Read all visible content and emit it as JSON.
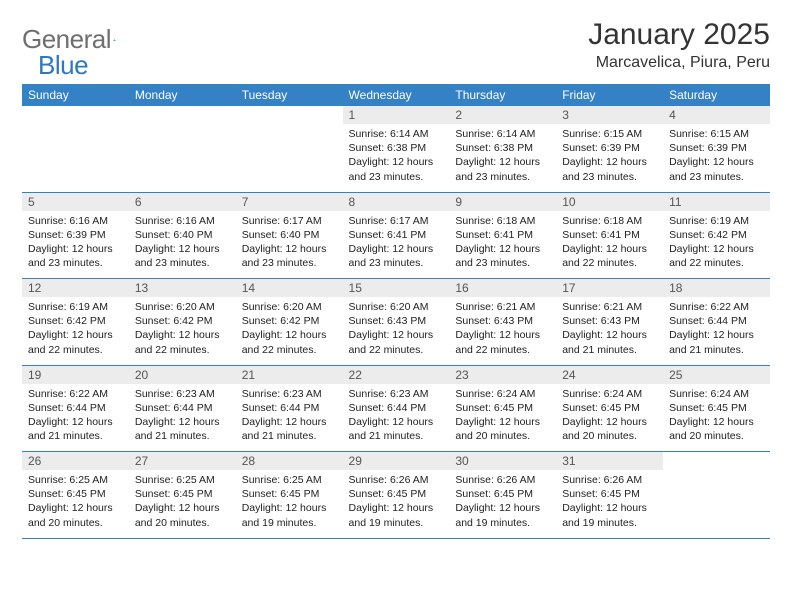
{
  "logo": {
    "general": "General",
    "blue": "Blue"
  },
  "title": "January 2025",
  "location": "Marcavelica, Piura, Peru",
  "colors": {
    "header_bg": "#3481c5",
    "header_text": "#ffffff",
    "daynum_bg": "#ececec",
    "daynum_text": "#555555",
    "body_text": "#222222",
    "rule": "#3481c5",
    "logo_gray": "#6f6f6f",
    "logo_blue": "#2f78bf"
  },
  "weekdays": [
    "Sunday",
    "Monday",
    "Tuesday",
    "Wednesday",
    "Thursday",
    "Friday",
    "Saturday"
  ],
  "weeks": [
    [
      null,
      null,
      null,
      {
        "n": "1",
        "sr": "Sunrise: 6:14 AM",
        "ss": "Sunset: 6:38 PM",
        "d1": "Daylight: 12 hours",
        "d2": "and 23 minutes."
      },
      {
        "n": "2",
        "sr": "Sunrise: 6:14 AM",
        "ss": "Sunset: 6:38 PM",
        "d1": "Daylight: 12 hours",
        "d2": "and 23 minutes."
      },
      {
        "n": "3",
        "sr": "Sunrise: 6:15 AM",
        "ss": "Sunset: 6:39 PM",
        "d1": "Daylight: 12 hours",
        "d2": "and 23 minutes."
      },
      {
        "n": "4",
        "sr": "Sunrise: 6:15 AM",
        "ss": "Sunset: 6:39 PM",
        "d1": "Daylight: 12 hours",
        "d2": "and 23 minutes."
      }
    ],
    [
      {
        "n": "5",
        "sr": "Sunrise: 6:16 AM",
        "ss": "Sunset: 6:39 PM",
        "d1": "Daylight: 12 hours",
        "d2": "and 23 minutes."
      },
      {
        "n": "6",
        "sr": "Sunrise: 6:16 AM",
        "ss": "Sunset: 6:40 PM",
        "d1": "Daylight: 12 hours",
        "d2": "and 23 minutes."
      },
      {
        "n": "7",
        "sr": "Sunrise: 6:17 AM",
        "ss": "Sunset: 6:40 PM",
        "d1": "Daylight: 12 hours",
        "d2": "and 23 minutes."
      },
      {
        "n": "8",
        "sr": "Sunrise: 6:17 AM",
        "ss": "Sunset: 6:41 PM",
        "d1": "Daylight: 12 hours",
        "d2": "and 23 minutes."
      },
      {
        "n": "9",
        "sr": "Sunrise: 6:18 AM",
        "ss": "Sunset: 6:41 PM",
        "d1": "Daylight: 12 hours",
        "d2": "and 23 minutes."
      },
      {
        "n": "10",
        "sr": "Sunrise: 6:18 AM",
        "ss": "Sunset: 6:41 PM",
        "d1": "Daylight: 12 hours",
        "d2": "and 22 minutes."
      },
      {
        "n": "11",
        "sr": "Sunrise: 6:19 AM",
        "ss": "Sunset: 6:42 PM",
        "d1": "Daylight: 12 hours",
        "d2": "and 22 minutes."
      }
    ],
    [
      {
        "n": "12",
        "sr": "Sunrise: 6:19 AM",
        "ss": "Sunset: 6:42 PM",
        "d1": "Daylight: 12 hours",
        "d2": "and 22 minutes."
      },
      {
        "n": "13",
        "sr": "Sunrise: 6:20 AM",
        "ss": "Sunset: 6:42 PM",
        "d1": "Daylight: 12 hours",
        "d2": "and 22 minutes."
      },
      {
        "n": "14",
        "sr": "Sunrise: 6:20 AM",
        "ss": "Sunset: 6:42 PM",
        "d1": "Daylight: 12 hours",
        "d2": "and 22 minutes."
      },
      {
        "n": "15",
        "sr": "Sunrise: 6:20 AM",
        "ss": "Sunset: 6:43 PM",
        "d1": "Daylight: 12 hours",
        "d2": "and 22 minutes."
      },
      {
        "n": "16",
        "sr": "Sunrise: 6:21 AM",
        "ss": "Sunset: 6:43 PM",
        "d1": "Daylight: 12 hours",
        "d2": "and 22 minutes."
      },
      {
        "n": "17",
        "sr": "Sunrise: 6:21 AM",
        "ss": "Sunset: 6:43 PM",
        "d1": "Daylight: 12 hours",
        "d2": "and 21 minutes."
      },
      {
        "n": "18",
        "sr": "Sunrise: 6:22 AM",
        "ss": "Sunset: 6:44 PM",
        "d1": "Daylight: 12 hours",
        "d2": "and 21 minutes."
      }
    ],
    [
      {
        "n": "19",
        "sr": "Sunrise: 6:22 AM",
        "ss": "Sunset: 6:44 PM",
        "d1": "Daylight: 12 hours",
        "d2": "and 21 minutes."
      },
      {
        "n": "20",
        "sr": "Sunrise: 6:23 AM",
        "ss": "Sunset: 6:44 PM",
        "d1": "Daylight: 12 hours",
        "d2": "and 21 minutes."
      },
      {
        "n": "21",
        "sr": "Sunrise: 6:23 AM",
        "ss": "Sunset: 6:44 PM",
        "d1": "Daylight: 12 hours",
        "d2": "and 21 minutes."
      },
      {
        "n": "22",
        "sr": "Sunrise: 6:23 AM",
        "ss": "Sunset: 6:44 PM",
        "d1": "Daylight: 12 hours",
        "d2": "and 21 minutes."
      },
      {
        "n": "23",
        "sr": "Sunrise: 6:24 AM",
        "ss": "Sunset: 6:45 PM",
        "d1": "Daylight: 12 hours",
        "d2": "and 20 minutes."
      },
      {
        "n": "24",
        "sr": "Sunrise: 6:24 AM",
        "ss": "Sunset: 6:45 PM",
        "d1": "Daylight: 12 hours",
        "d2": "and 20 minutes."
      },
      {
        "n": "25",
        "sr": "Sunrise: 6:24 AM",
        "ss": "Sunset: 6:45 PM",
        "d1": "Daylight: 12 hours",
        "d2": "and 20 minutes."
      }
    ],
    [
      {
        "n": "26",
        "sr": "Sunrise: 6:25 AM",
        "ss": "Sunset: 6:45 PM",
        "d1": "Daylight: 12 hours",
        "d2": "and 20 minutes."
      },
      {
        "n": "27",
        "sr": "Sunrise: 6:25 AM",
        "ss": "Sunset: 6:45 PM",
        "d1": "Daylight: 12 hours",
        "d2": "and 20 minutes."
      },
      {
        "n": "28",
        "sr": "Sunrise: 6:25 AM",
        "ss": "Sunset: 6:45 PM",
        "d1": "Daylight: 12 hours",
        "d2": "and 19 minutes."
      },
      {
        "n": "29",
        "sr": "Sunrise: 6:26 AM",
        "ss": "Sunset: 6:45 PM",
        "d1": "Daylight: 12 hours",
        "d2": "and 19 minutes."
      },
      {
        "n": "30",
        "sr": "Sunrise: 6:26 AM",
        "ss": "Sunset: 6:45 PM",
        "d1": "Daylight: 12 hours",
        "d2": "and 19 minutes."
      },
      {
        "n": "31",
        "sr": "Sunrise: 6:26 AM",
        "ss": "Sunset: 6:45 PM",
        "d1": "Daylight: 12 hours",
        "d2": "and 19 minutes."
      },
      null
    ]
  ]
}
